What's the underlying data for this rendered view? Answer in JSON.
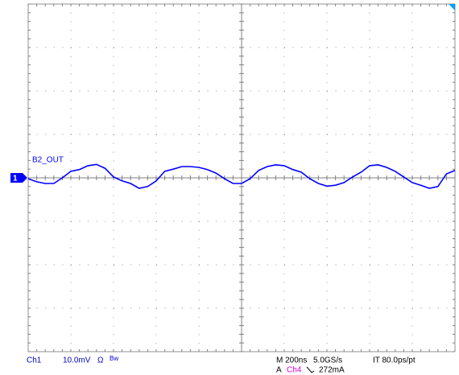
{
  "chart_data": {
    "type": "line",
    "x": [
      0,
      40,
      80,
      120,
      160,
      200,
      240,
      280,
      320,
      360,
      400,
      440,
      480,
      520,
      560,
      600,
      640,
      680,
      720,
      760,
      800,
      840,
      880,
      920,
      960,
      1000,
      1040,
      1080,
      1120,
      1160,
      1200,
      1240,
      1280,
      1320,
      1360,
      1400,
      1440,
      1480,
      1520,
      1560,
      1600,
      1640,
      1680,
      1720,
      1760,
      1800,
      1840,
      1880,
      1920,
      1960,
      2000
    ],
    "series": [
      {
        "name": "B2_OUT",
        "color": "#0000ff",
        "values": [
          -0.2,
          -0.9,
          -1.3,
          -1.3,
          0,
          1.5,
          1.9,
          2.8,
          3.1,
          2.2,
          0.2,
          -0.7,
          -1.3,
          -2.4,
          -2.0,
          -0.7,
          1.5,
          2.0,
          2.6,
          2.6,
          2.4,
          1.9,
          1.1,
          -0.2,
          -1.3,
          -1.3,
          -0.2,
          1.7,
          2.6,
          3.0,
          2.8,
          1.9,
          1.3,
          -0.2,
          -1.3,
          -1.9,
          -1.7,
          -1.1,
          0.2,
          1.3,
          2.8,
          3.0,
          2.4,
          1.5,
          0.2,
          -1.1,
          -1.7,
          -2.4,
          -2.0,
          0.9,
          1.7
        ]
      }
    ],
    "xlim": [
      0,
      2000
    ],
    "xticks": [
      0,
      200,
      400,
      600,
      800,
      1000,
      1200,
      1400,
      1600,
      1800,
      2000
    ],
    "ylim": [
      -40,
      40
    ],
    "yticks": [
      -40,
      -30,
      -20,
      -10,
      0,
      10,
      20,
      30,
      40
    ],
    "grid": true,
    "channel_marker": "1",
    "readouts": {
      "channel": "Ch1",
      "scale": "10.0mV",
      "coupling": "Ω",
      "bandwidth": "Bw",
      "timebase": "M 200ns",
      "sample_rate": "5.0GS/s",
      "record": "IT 80.0ps/pt",
      "trigger_mode": "A",
      "trigger_source": "Ch4",
      "trigger_level": "272mA"
    }
  }
}
